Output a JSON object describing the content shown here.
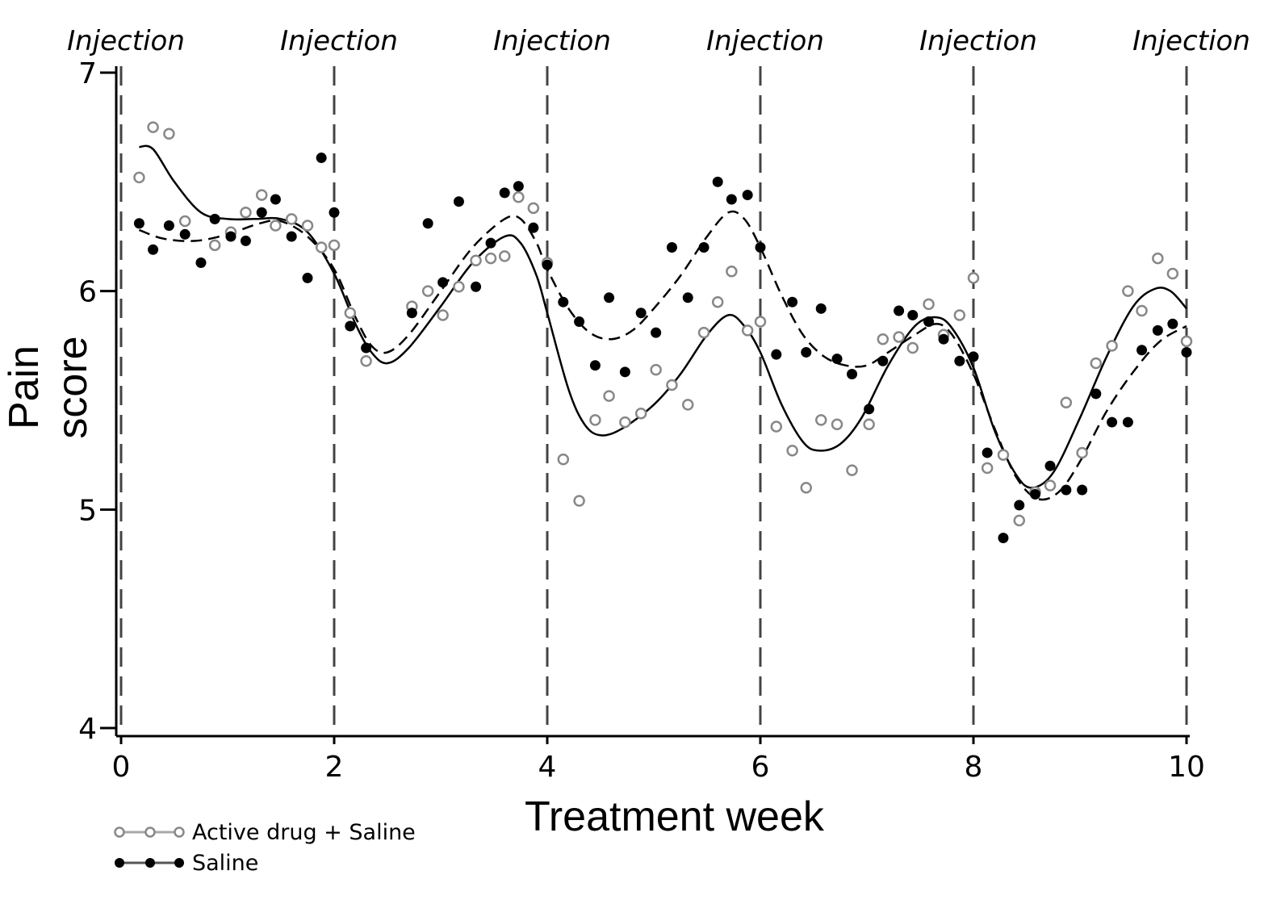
{
  "chart_data": {
    "type": "scatter",
    "xlabel": "Treatment week",
    "ylabel": "Pain score",
    "xlim": [
      0,
      10
    ],
    "ylim": [
      4,
      7
    ],
    "x_ticks": [
      "0",
      "2",
      "4",
      "6",
      "8",
      "10"
    ],
    "y_ticks": [
      "4",
      "5",
      "6",
      "7"
    ],
    "grid": false,
    "legend_position": "bottom-left",
    "annotations": {
      "injection_label": "Injection",
      "injection_weeks": [
        0,
        2,
        4,
        6,
        8,
        10
      ]
    },
    "series": [
      {
        "name": "Active drug + Saline",
        "marker": "open-circle",
        "line_style": "solid",
        "color": "#888888",
        "points": [
          [
            0.17,
            6.52
          ],
          [
            0.3,
            6.75
          ],
          [
            0.45,
            6.72
          ],
          [
            0.6,
            6.32
          ],
          [
            0.88,
            6.21
          ],
          [
            1.03,
            6.27
          ],
          [
            1.17,
            6.36
          ],
          [
            1.32,
            6.44
          ],
          [
            1.45,
            6.3
          ],
          [
            1.6,
            6.33
          ],
          [
            1.75,
            6.3
          ],
          [
            1.88,
            6.2
          ],
          [
            2.0,
            6.21
          ],
          [
            2.15,
            5.9
          ],
          [
            2.3,
            5.68
          ],
          [
            2.73,
            5.93
          ],
          [
            2.88,
            6.0
          ],
          [
            3.02,
            5.89
          ],
          [
            3.17,
            6.02
          ],
          [
            3.33,
            6.14
          ],
          [
            3.47,
            6.15
          ],
          [
            3.6,
            6.16
          ],
          [
            3.73,
            6.43
          ],
          [
            3.87,
            6.38
          ],
          [
            4.0,
            6.13
          ],
          [
            4.15,
            5.23
          ],
          [
            4.3,
            5.04
          ],
          [
            4.45,
            5.41
          ],
          [
            4.58,
            5.52
          ],
          [
            4.73,
            5.4
          ],
          [
            4.88,
            5.44
          ],
          [
            5.02,
            5.64
          ],
          [
            5.17,
            5.57
          ],
          [
            5.32,
            5.48
          ],
          [
            5.47,
            5.81
          ],
          [
            5.6,
            5.95
          ],
          [
            5.73,
            6.09
          ],
          [
            5.88,
            5.82
          ],
          [
            6.0,
            5.86
          ],
          [
            6.15,
            5.38
          ],
          [
            6.3,
            5.27
          ],
          [
            6.43,
            5.1
          ],
          [
            6.57,
            5.41
          ],
          [
            6.72,
            5.39
          ],
          [
            6.86,
            5.18
          ],
          [
            7.02,
            5.39
          ],
          [
            7.15,
            5.78
          ],
          [
            7.3,
            5.79
          ],
          [
            7.43,
            5.74
          ],
          [
            7.58,
            5.94
          ],
          [
            7.72,
            5.8
          ],
          [
            7.87,
            5.89
          ],
          [
            8.0,
            6.06
          ],
          [
            8.13,
            5.19
          ],
          [
            8.28,
            5.25
          ],
          [
            8.43,
            4.95
          ],
          [
            8.58,
            5.08
          ],
          [
            8.72,
            5.11
          ],
          [
            8.87,
            5.49
          ],
          [
            9.02,
            5.26
          ],
          [
            9.15,
            5.67
          ],
          [
            9.3,
            5.75
          ],
          [
            9.45,
            6.0
          ],
          [
            9.58,
            5.91
          ],
          [
            9.73,
            6.15
          ],
          [
            9.87,
            6.08
          ],
          [
            10.0,
            5.77
          ]
        ],
        "curve": [
          [
            0.17,
            6.66
          ],
          [
            0.3,
            6.65
          ],
          [
            0.5,
            6.5
          ],
          [
            0.75,
            6.36
          ],
          [
            1.0,
            6.33
          ],
          [
            1.25,
            6.33
          ],
          [
            1.5,
            6.33
          ],
          [
            1.75,
            6.27
          ],
          [
            2.0,
            6.08
          ],
          [
            2.2,
            5.85
          ],
          [
            2.35,
            5.72
          ],
          [
            2.5,
            5.67
          ],
          [
            2.7,
            5.74
          ],
          [
            3.0,
            5.93
          ],
          [
            3.3,
            6.13
          ],
          [
            3.6,
            6.25
          ],
          [
            3.75,
            6.22
          ],
          [
            3.9,
            6.07
          ],
          [
            4.0,
            5.9
          ],
          [
            4.2,
            5.55
          ],
          [
            4.35,
            5.39
          ],
          [
            4.5,
            5.34
          ],
          [
            4.7,
            5.37
          ],
          [
            5.0,
            5.48
          ],
          [
            5.25,
            5.62
          ],
          [
            5.5,
            5.8
          ],
          [
            5.7,
            5.89
          ],
          [
            5.85,
            5.84
          ],
          [
            6.0,
            5.72
          ],
          [
            6.2,
            5.48
          ],
          [
            6.4,
            5.31
          ],
          [
            6.55,
            5.27
          ],
          [
            6.75,
            5.3
          ],
          [
            6.95,
            5.42
          ],
          [
            7.2,
            5.66
          ],
          [
            7.45,
            5.84
          ],
          [
            7.65,
            5.88
          ],
          [
            7.8,
            5.83
          ],
          [
            8.0,
            5.65
          ],
          [
            8.2,
            5.36
          ],
          [
            8.4,
            5.16
          ],
          [
            8.55,
            5.1
          ],
          [
            8.75,
            5.17
          ],
          [
            9.0,
            5.42
          ],
          [
            9.25,
            5.7
          ],
          [
            9.5,
            5.93
          ],
          [
            9.7,
            6.01
          ],
          [
            9.85,
            6.0
          ],
          [
            10.0,
            5.92
          ]
        ]
      },
      {
        "name": "Saline",
        "marker": "filled-circle",
        "line_style": "dashed",
        "color": "#000000",
        "points": [
          [
            0.17,
            6.31
          ],
          [
            0.3,
            6.19
          ],
          [
            0.45,
            6.3
          ],
          [
            0.6,
            6.26
          ],
          [
            0.75,
            6.13
          ],
          [
            0.88,
            6.33
          ],
          [
            1.03,
            6.25
          ],
          [
            1.17,
            6.23
          ],
          [
            1.32,
            6.36
          ],
          [
            1.45,
            6.42
          ],
          [
            1.6,
            6.25
          ],
          [
            1.75,
            6.06
          ],
          [
            1.88,
            6.61
          ],
          [
            2.0,
            6.36
          ],
          [
            2.15,
            5.84
          ],
          [
            2.3,
            5.74
          ],
          [
            2.73,
            5.9
          ],
          [
            2.88,
            6.31
          ],
          [
            3.02,
            6.04
          ],
          [
            3.17,
            6.41
          ],
          [
            3.33,
            6.02
          ],
          [
            3.47,
            6.22
          ],
          [
            3.6,
            6.45
          ],
          [
            3.73,
            6.48
          ],
          [
            3.87,
            6.29
          ],
          [
            4.0,
            6.12
          ],
          [
            4.15,
            5.95
          ],
          [
            4.3,
            5.86
          ],
          [
            4.45,
            5.66
          ],
          [
            4.58,
            5.97
          ],
          [
            4.73,
            5.63
          ],
          [
            4.88,
            5.9
          ],
          [
            5.02,
            5.81
          ],
          [
            5.17,
            6.2
          ],
          [
            5.32,
            5.97
          ],
          [
            5.47,
            6.2
          ],
          [
            5.6,
            6.5
          ],
          [
            5.73,
            6.42
          ],
          [
            5.88,
            6.44
          ],
          [
            6.0,
            6.2
          ],
          [
            6.15,
            5.71
          ],
          [
            6.3,
            5.95
          ],
          [
            6.43,
            5.72
          ],
          [
            6.57,
            5.92
          ],
          [
            6.72,
            5.69
          ],
          [
            6.86,
            5.62
          ],
          [
            7.02,
            5.46
          ],
          [
            7.15,
            5.68
          ],
          [
            7.3,
            5.91
          ],
          [
            7.43,
            5.89
          ],
          [
            7.58,
            5.86
          ],
          [
            7.72,
            5.78
          ],
          [
            7.87,
            5.68
          ],
          [
            8.0,
            5.7
          ],
          [
            8.13,
            5.26
          ],
          [
            8.28,
            4.87
          ],
          [
            8.43,
            5.02
          ],
          [
            8.58,
            5.07
          ],
          [
            8.72,
            5.2
          ],
          [
            8.87,
            5.09
          ],
          [
            9.02,
            5.09
          ],
          [
            9.15,
            5.53
          ],
          [
            9.3,
            5.4
          ],
          [
            9.45,
            5.4
          ],
          [
            9.58,
            5.73
          ],
          [
            9.73,
            5.82
          ],
          [
            9.87,
            5.85
          ],
          [
            10.0,
            5.72
          ]
        ],
        "curve": [
          [
            0.17,
            6.28
          ],
          [
            0.4,
            6.24
          ],
          [
            0.7,
            6.23
          ],
          [
            1.0,
            6.26
          ],
          [
            1.3,
            6.31
          ],
          [
            1.5,
            6.32
          ],
          [
            1.75,
            6.25
          ],
          [
            2.0,
            6.1
          ],
          [
            2.2,
            5.88
          ],
          [
            2.35,
            5.75
          ],
          [
            2.5,
            5.72
          ],
          [
            2.7,
            5.8
          ],
          [
            3.0,
            6.0
          ],
          [
            3.3,
            6.2
          ],
          [
            3.6,
            6.33
          ],
          [
            3.75,
            6.33
          ],
          [
            3.9,
            6.22
          ],
          [
            4.0,
            6.1
          ],
          [
            4.2,
            5.92
          ],
          [
            4.4,
            5.81
          ],
          [
            4.6,
            5.78
          ],
          [
            4.8,
            5.82
          ],
          [
            5.0,
            5.92
          ],
          [
            5.25,
            6.07
          ],
          [
            5.5,
            6.25
          ],
          [
            5.7,
            6.36
          ],
          [
            5.85,
            6.33
          ],
          [
            6.0,
            6.2
          ],
          [
            6.2,
            5.98
          ],
          [
            6.4,
            5.8
          ],
          [
            6.6,
            5.7
          ],
          [
            6.8,
            5.66
          ],
          [
            7.0,
            5.66
          ],
          [
            7.2,
            5.72
          ],
          [
            7.45,
            5.8
          ],
          [
            7.65,
            5.85
          ],
          [
            7.8,
            5.8
          ],
          [
            8.0,
            5.62
          ],
          [
            8.2,
            5.37
          ],
          [
            8.4,
            5.15
          ],
          [
            8.6,
            5.05
          ],
          [
            8.8,
            5.08
          ],
          [
            9.0,
            5.22
          ],
          [
            9.25,
            5.45
          ],
          [
            9.5,
            5.63
          ],
          [
            9.75,
            5.77
          ],
          [
            10.0,
            5.84
          ]
        ]
      }
    ]
  },
  "legend": {
    "items": [
      {
        "label": "Active drug + Saline"
      },
      {
        "label": "Saline"
      }
    ]
  }
}
